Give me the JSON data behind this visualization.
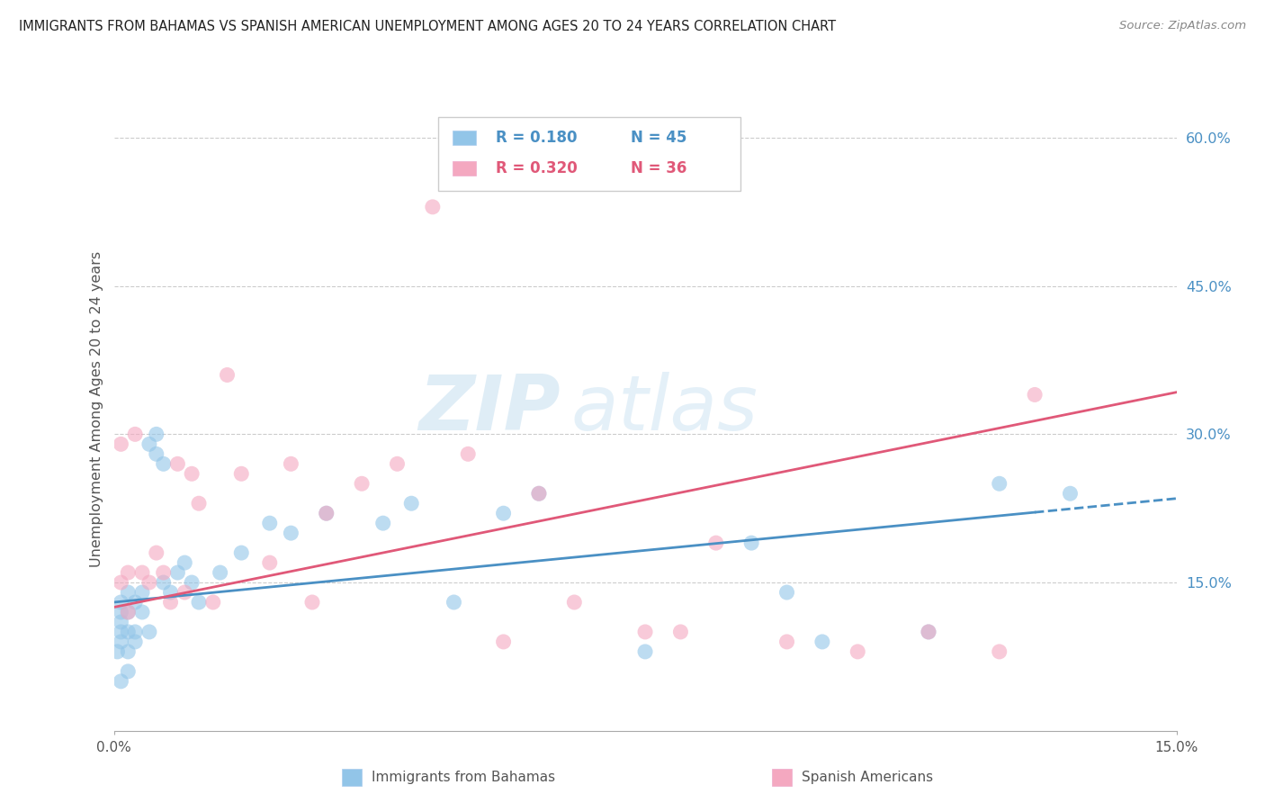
{
  "title": "IMMIGRANTS FROM BAHAMAS VS SPANISH AMERICAN UNEMPLOYMENT AMONG AGES 20 TO 24 YEARS CORRELATION CHART",
  "source": "Source: ZipAtlas.com",
  "ylabel": "Unemployment Among Ages 20 to 24 years",
  "right_ytick_vals": [
    0.15,
    0.3,
    0.45,
    0.6
  ],
  "right_ytick_labels": [
    "15.0%",
    "30.0%",
    "45.0%",
    "60.0%"
  ],
  "legend_blue_r": "R = 0.180",
  "legend_blue_n": "N = 45",
  "legend_pink_r": "R = 0.320",
  "legend_pink_n": "N = 36",
  "blue_color": "#92c5e8",
  "pink_color": "#f4a8c0",
  "blue_line_color": "#4a90c4",
  "pink_line_color": "#e05878",
  "xlim": [
    0.0,
    0.15
  ],
  "ylim": [
    0.0,
    0.65
  ],
  "blue_x": [
    0.0005,
    0.001,
    0.001,
    0.001,
    0.001,
    0.001,
    0.001,
    0.002,
    0.002,
    0.002,
    0.002,
    0.002,
    0.003,
    0.003,
    0.003,
    0.004,
    0.004,
    0.005,
    0.005,
    0.006,
    0.006,
    0.007,
    0.007,
    0.008,
    0.009,
    0.01,
    0.011,
    0.012,
    0.015,
    0.018,
    0.022,
    0.025,
    0.03,
    0.038,
    0.042,
    0.048,
    0.055,
    0.06,
    0.075,
    0.09,
    0.095,
    0.1,
    0.115,
    0.125,
    0.135
  ],
  "blue_y": [
    0.08,
    0.09,
    0.1,
    0.11,
    0.12,
    0.13,
    0.05,
    0.1,
    0.12,
    0.14,
    0.06,
    0.08,
    0.09,
    0.1,
    0.13,
    0.12,
    0.14,
    0.1,
    0.29,
    0.28,
    0.3,
    0.27,
    0.15,
    0.14,
    0.16,
    0.17,
    0.15,
    0.13,
    0.16,
    0.18,
    0.21,
    0.2,
    0.22,
    0.21,
    0.23,
    0.13,
    0.22,
    0.24,
    0.08,
    0.19,
    0.14,
    0.09,
    0.1,
    0.25,
    0.24
  ],
  "pink_x": [
    0.001,
    0.001,
    0.002,
    0.002,
    0.003,
    0.004,
    0.005,
    0.006,
    0.007,
    0.008,
    0.009,
    0.01,
    0.011,
    0.012,
    0.014,
    0.016,
    0.018,
    0.022,
    0.025,
    0.028,
    0.03,
    0.035,
    0.04,
    0.045,
    0.05,
    0.055,
    0.06,
    0.065,
    0.075,
    0.08,
    0.085,
    0.095,
    0.105,
    0.115,
    0.125,
    0.13
  ],
  "pink_y": [
    0.29,
    0.15,
    0.12,
    0.16,
    0.3,
    0.16,
    0.15,
    0.18,
    0.16,
    0.13,
    0.27,
    0.14,
    0.26,
    0.23,
    0.13,
    0.36,
    0.26,
    0.17,
    0.27,
    0.13,
    0.22,
    0.25,
    0.27,
    0.53,
    0.28,
    0.09,
    0.24,
    0.13,
    0.1,
    0.1,
    0.19,
    0.09,
    0.08,
    0.1,
    0.08,
    0.34
  ]
}
